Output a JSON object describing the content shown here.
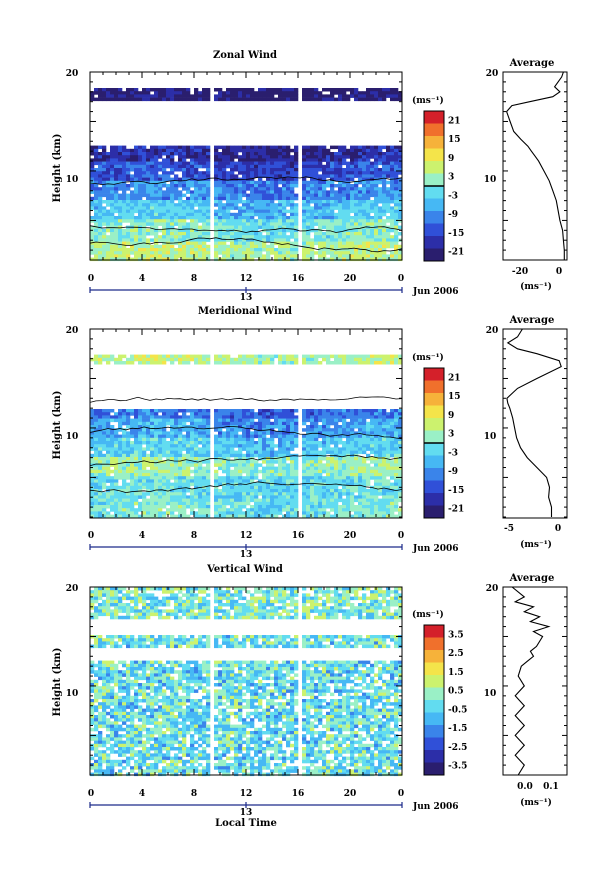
{
  "colors": {
    "scale": [
      "#2a1e6e",
      "#2c2ea8",
      "#3050d8",
      "#3a84ea",
      "#46b8f4",
      "#62dcf0",
      "#9af0c6",
      "#ccf26e",
      "#f4e44a",
      "#f6b23a",
      "#f0702c",
      "#d4202a"
    ],
    "line": "#000000",
    "time_axis": "#1c2a8a"
  },
  "panels": [
    {
      "title": "Zonal Wind",
      "ylabel": "Height (km)",
      "y_ticks": [
        "20",
        "10"
      ],
      "x_ticks": [
        "0",
        "4",
        "8",
        "12",
        "16",
        "20",
        "0"
      ],
      "day_label": "13",
      "date_label": "Jun 2006",
      "unit_label": "(ms⁻¹)",
      "colorbar_ticks": [
        "21",
        "15",
        "9",
        "3",
        "-3",
        "-9",
        "-15",
        "-21"
      ],
      "avg_title": "Average",
      "avg_y_ticks": [
        "20",
        "10"
      ],
      "avg_x_ticks": [
        "-20",
        "0"
      ],
      "avg_xlabel": "(ms⁻¹)"
    },
    {
      "title": "Meridional Wind",
      "ylabel": "Height (km)",
      "y_ticks": [
        "20",
        "10"
      ],
      "x_ticks": [
        "0",
        "4",
        "8",
        "12",
        "16",
        "20",
        "0"
      ],
      "day_label": "13",
      "date_label": "Jun 2006",
      "unit_label": "(ms⁻¹)",
      "colorbar_ticks": [
        "21",
        "15",
        "9",
        "3",
        "-3",
        "-9",
        "-15",
        "-21"
      ],
      "avg_title": "Average",
      "avg_y_ticks": [
        "20",
        "10"
      ],
      "avg_x_ticks": [
        "-5",
        "0"
      ],
      "avg_xlabel": "(ms⁻¹)"
    },
    {
      "title": "Vertical Wind",
      "ylabel": "Height (km)",
      "y_ticks": [
        "20",
        "10"
      ],
      "x_ticks": [
        "0",
        "4",
        "8",
        "12",
        "16",
        "20",
        "0"
      ],
      "day_label": "13",
      "date_label": "Jun 2006",
      "unit_label": "(ms⁻¹)",
      "colorbar_ticks": [
        "3.5",
        "2.5",
        "1.5",
        "0.5",
        "-0.5",
        "-1.5",
        "-2.5",
        "-3.5"
      ],
      "avg_title": "Average",
      "avg_y_ticks": [
        "20",
        "10"
      ],
      "avg_x_ticks": [
        "0.0",
        "0.1"
      ],
      "avg_xlabel": "(ms⁻¹)",
      "xlabel": "Local Time"
    }
  ],
  "chart_data": [
    {
      "type": "heatmap",
      "title": "Zonal Wind",
      "ylabel": "Height (km)",
      "xlim": [
        0,
        24
      ],
      "ylim": [
        1,
        20
      ],
      "colorbar_range": [
        -24,
        24
      ],
      "data_gaps_hours": [
        [
          9.2,
          9.6
        ],
        [
          16.0,
          16.4
        ]
      ],
      "height_bands": [
        {
          "from_km": 1,
          "to_km": 3,
          "value": 4
        },
        {
          "from_km": 3,
          "to_km": 5,
          "value": 0
        },
        {
          "from_km": 5,
          "to_km": 7,
          "value": -5
        },
        {
          "from_km": 7,
          "to_km": 9,
          "value": -10
        },
        {
          "from_km": 9,
          "to_km": 11,
          "value": -15
        },
        {
          "from_km": 11,
          "to_km": 12.5,
          "value": -19
        },
        {
          "from_km": 17,
          "to_km": 18.3,
          "value": -22
        }
      ]
    },
    {
      "type": "line",
      "title": "Average",
      "xlabel": "(ms⁻¹)",
      "xlim": [
        -33,
        3
      ],
      "ylim": [
        1,
        20
      ],
      "x": [
        1.5,
        1.5,
        1,
        0.5,
        -1,
        -2,
        -3,
        -5,
        -7,
        -10,
        -13,
        -15,
        -17,
        -19,
        -23,
        -27,
        -29,
        -31,
        -28,
        -18,
        -5,
        -1,
        -4,
        -2,
        0,
        1
      ],
      "y": [
        1,
        2,
        3,
        4,
        5,
        6,
        7,
        8,
        9,
        10,
        11,
        11.5,
        12,
        12.5,
        13.2,
        14,
        15,
        16,
        16.6,
        17,
        17.5,
        18,
        18.5,
        19,
        19.5,
        20
      ]
    },
    {
      "type": "heatmap",
      "title": "Meridional Wind",
      "ylabel": "Height (km)",
      "xlim": [
        0,
        24
      ],
      "ylim": [
        1,
        20
      ],
      "colorbar_range": [
        -24,
        24
      ],
      "data_gaps_hours": [
        [
          9.2,
          9.6
        ],
        [
          16.0,
          16.4
        ]
      ],
      "height_bands": [
        {
          "from_km": 1,
          "to_km": 3,
          "value": -1
        },
        {
          "from_km": 3,
          "to_km": 5,
          "value": -2
        },
        {
          "from_km": 5,
          "to_km": 7,
          "value": 2
        },
        {
          "from_km": 7,
          "to_km": 9,
          "value": -4
        },
        {
          "from_km": 9,
          "to_km": 11,
          "value": -8
        },
        {
          "from_km": 11,
          "to_km": 12,
          "value": -12
        },
        {
          "from_km": 16.5,
          "to_km": 17.5,
          "value": 4
        }
      ]
    },
    {
      "type": "line",
      "title": "Average",
      "xlabel": "(ms⁻¹)",
      "xlim": [
        -6,
        0.6
      ],
      "ylim": [
        1,
        20
      ],
      "x": [
        -1,
        -1,
        -1.3,
        -1.2,
        -1.5,
        -2.5,
        -3.5,
        -4.2,
        -4.6,
        -4.8,
        -5,
        -5.3,
        -5.5,
        -5.6,
        -4.5,
        -2.5,
        0,
        -0.2,
        -2.5,
        -4.5,
        -5.5,
        -4.5,
        -4
      ],
      "y": [
        1,
        2,
        3,
        4,
        5,
        6,
        7,
        8,
        9,
        10,
        11,
        12,
        12.5,
        13,
        14,
        15,
        16.2,
        16.8,
        17.5,
        18,
        18.6,
        19.2,
        20
      ]
    },
    {
      "type": "heatmap",
      "title": "Vertical Wind",
      "ylabel": "Height (km)",
      "xlabel": "Local Time",
      "xlim": [
        0,
        24
      ],
      "ylim": [
        1,
        20
      ],
      "colorbar_range": [
        -4,
        4
      ],
      "data_gaps_hours": [
        [
          9.2,
          9.6
        ],
        [
          16.0,
          16.4
        ]
      ],
      "height_bands": [
        {
          "from_km": 1,
          "to_km": 12.5,
          "value": -0.3
        },
        {
          "from_km": 14,
          "to_km": 15.3,
          "value": -0.2
        },
        {
          "from_km": 16.8,
          "to_km": 20,
          "value": 0
        }
      ]
    },
    {
      "type": "line",
      "title": "Average",
      "xlabel": "(ms⁻¹)",
      "xlim": [
        -0.05,
        0.16
      ],
      "ylim": [
        1,
        20
      ],
      "x": [
        0.0,
        0.02,
        -0.01,
        0.02,
        -0.01,
        0.02,
        -0.01,
        0.02,
        -0.01,
        0.02,
        0.0,
        0.01,
        0.03,
        0.05,
        0.04,
        0.06,
        0.08,
        0.05,
        0.1,
        0.04,
        0.07,
        0.02,
        0.05,
        -0.01,
        0.02,
        -0.02
      ],
      "y": [
        1,
        2,
        3,
        4,
        5,
        6,
        7,
        8,
        9,
        10,
        11,
        12,
        12.5,
        13,
        13.5,
        14,
        15,
        15.5,
        16,
        16.5,
        17,
        17.5,
        18,
        18.5,
        19,
        20
      ]
    }
  ]
}
